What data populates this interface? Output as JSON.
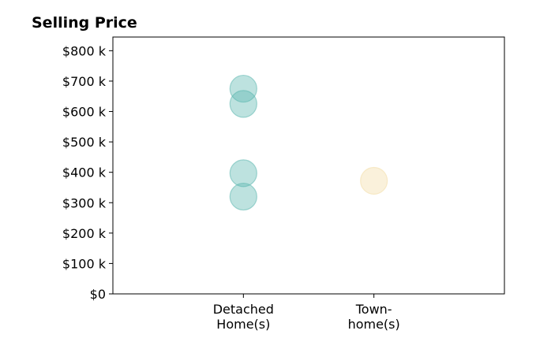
{
  "chart_data": {
    "type": "scatter",
    "title": "Selling Price",
    "xlabel": "",
    "ylabel": "",
    "categories": [
      {
        "line1": "Detached",
        "line2": "Home(s)"
      },
      {
        "line1": "Town-",
        "line2": "home(s)"
      }
    ],
    "xlim": [
      0,
      3
    ],
    "ylim": [
      0,
      845000
    ],
    "yticks": [
      {
        "value": 0,
        "label": "$0"
      },
      {
        "value": 100000,
        "label": "$100 k"
      },
      {
        "value": 200000,
        "label": "$200 k"
      },
      {
        "value": 300000,
        "label": "$300 k"
      },
      {
        "value": 400000,
        "label": "$400 k"
      },
      {
        "value": 500000,
        "label": "$500 k"
      },
      {
        "value": 600000,
        "label": "$600 k"
      },
      {
        "value": 700000,
        "label": "$700 k"
      },
      {
        "value": 800000,
        "label": "$800 k"
      }
    ],
    "series": [
      {
        "category_index": 0,
        "color": "#5BB7AE",
        "points": [
          675000,
          625000,
          397000,
          320000
        ]
      },
      {
        "category_index": 1,
        "color": "#F3DDA6",
        "points": [
          372000
        ]
      }
    ],
    "grid": false
  }
}
